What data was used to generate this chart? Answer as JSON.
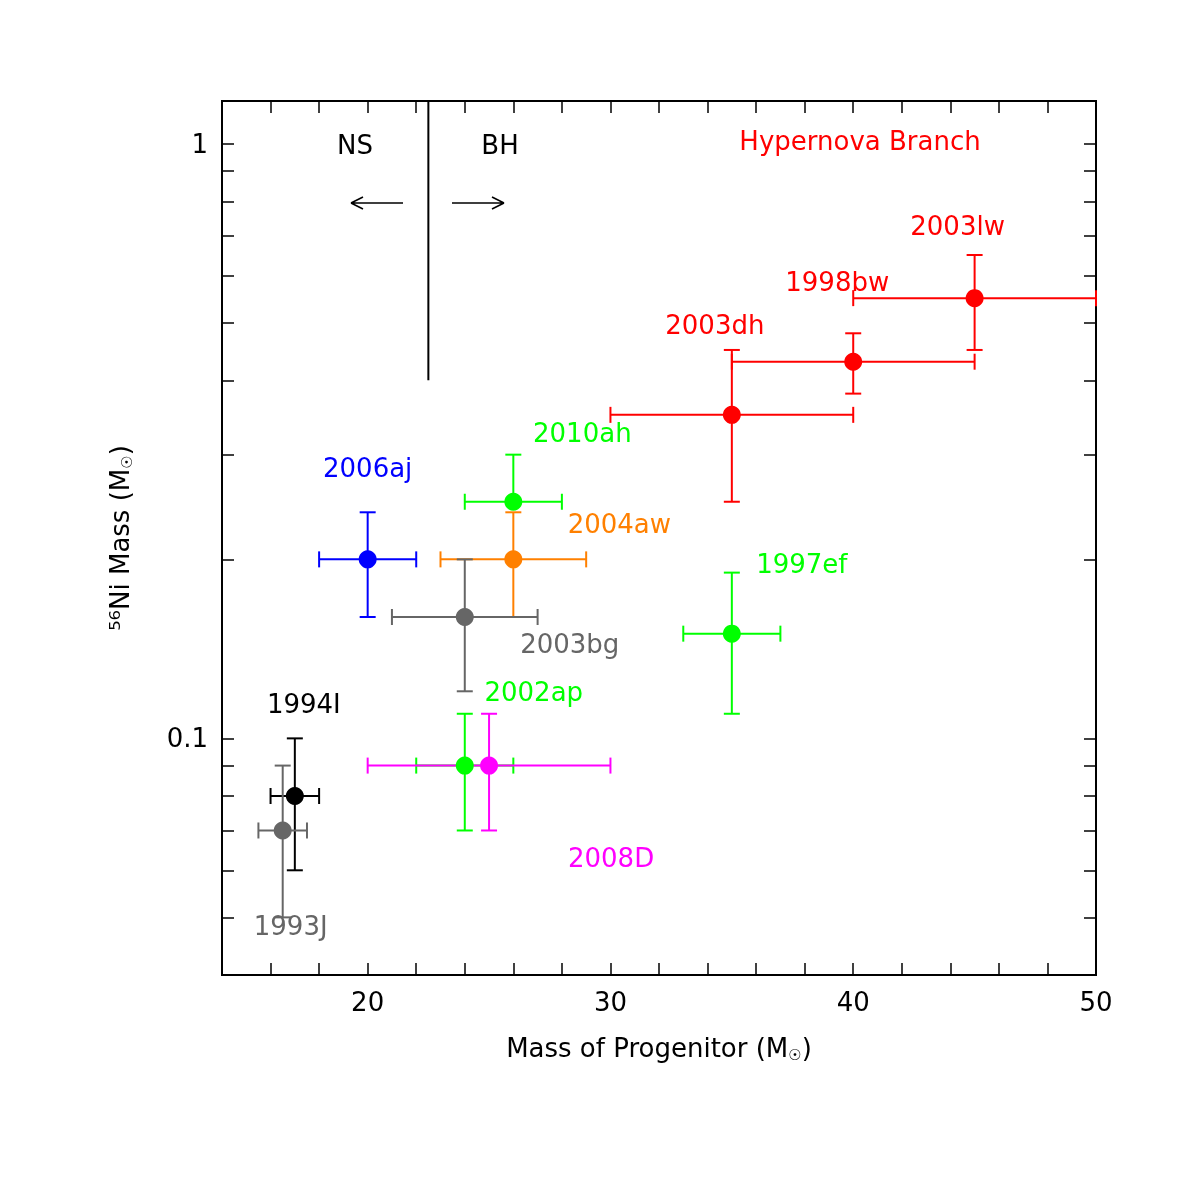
{
  "chart_data": {
    "type": "scatter",
    "xlabel": "Mass of Progenitor (M$_{☉}$)",
    "ylabel": "⁵⁶Ni Mass (M$_{☉}$)",
    "xlim": [
      14,
      50
    ],
    "xticks": [
      {
        "value": 16,
        "label": null
      },
      {
        "value": 18,
        "label": null
      },
      20,
      {
        "value": 22,
        "label": null
      },
      {
        "value": 24,
        "label": null
      },
      {
        "value": 26,
        "label": null
      },
      {
        "value": 28,
        "label": null
      },
      30,
      {
        "value": 32,
        "label": null
      },
      {
        "value": 34,
        "label": null
      },
      {
        "value": 36,
        "label": null
      },
      {
        "value": 38,
        "label": null
      },
      40,
      {
        "value": 42,
        "label": null
      },
      {
        "value": 44,
        "label": null
      },
      {
        "value": 46,
        "label": null
      },
      {
        "value": 48,
        "label": null
      },
      50
    ],
    "ylim": [
      0.04,
      1.18
    ],
    "yticks": [
      {
        "value": 0.05,
        "label": null
      },
      {
        "value": 0.06,
        "label": null
      },
      {
        "value": 0.07,
        "label": null
      },
      {
        "value": 0.08,
        "label": null
      },
      {
        "value": 0.09,
        "label": null
      },
      0.1,
      {
        "value": 0.2,
        "label": null
      },
      {
        "value": 0.3,
        "label": null
      },
      {
        "value": 0.4,
        "label": null
      },
      {
        "value": 0.5,
        "label": null
      },
      {
        "value": 0.6,
        "label": null
      },
      {
        "value": 0.7,
        "label": null
      },
      {
        "value": 0.8,
        "label": null
      },
      {
        "value": 0.9,
        "label": null
      },
      1
    ],
    "log": "y",
    "grid": false,
    "legend": false,
    "marker": "circle",
    "series": [
      {
        "name": "2003lw",
        "color": "#ff0000",
        "x": [
          45
        ],
        "values": [
          0.55
        ],
        "errors": [
          [
            0.45,
            0.65
          ]
        ],
        "xerrors": [
          [
            40,
            50
          ]
        ]
      },
      {
        "name": "1998bw",
        "color": "#ff0000",
        "x": [
          40
        ],
        "values": [
          0.43
        ],
        "errors": [
          [
            0.38,
            0.48
          ]
        ],
        "xerrors": [
          [
            35,
            45
          ]
        ]
      },
      {
        "name": "2003dh",
        "color": "#ff0000",
        "x": [
          35
        ],
        "values": [
          0.35
        ],
        "errors": [
          [
            0.25,
            0.45
          ]
        ],
        "xerrors": [
          [
            30,
            40
          ]
        ]
      },
      {
        "name": "2010ah",
        "color": "#00ff00",
        "x": [
          26
        ],
        "values": [
          0.25
        ],
        "errors": [
          [
            0.25,
            0.3
          ]
        ],
        "xerrors": [
          [
            24,
            28
          ]
        ]
      },
      {
        "name": "2004aw",
        "color": "#ff8000",
        "x": [
          26
        ],
        "values": [
          0.2
        ],
        "errors": [
          [
            0.16,
            0.24
          ]
        ],
        "xerrors": [
          [
            23,
            29
          ]
        ]
      },
      {
        "name": "2006aj",
        "color": "#0000ff",
        "x": [
          20
        ],
        "values": [
          0.2
        ],
        "errors": [
          [
            0.16,
            0.24
          ]
        ],
        "xerrors": [
          [
            18,
            22
          ]
        ]
      },
      {
        "name": "2003bg",
        "color": "#666666",
        "x": [
          24
        ],
        "values": [
          0.16
        ],
        "errors": [
          [
            0.12,
            0.2
          ]
        ],
        "xerrors": [
          [
            21,
            27
          ]
        ]
      },
      {
        "name": "1997ef",
        "color": "#00ff00",
        "x": [
          35
        ],
        "values": [
          0.15
        ],
        "errors": [
          [
            0.11,
            0.19
          ]
        ],
        "xerrors": [
          [
            33,
            37
          ]
        ]
      },
      {
        "name": "2002ap",
        "color": "#00ff00",
        "x": [
          24
        ],
        "values": [
          0.09
        ],
        "errors": [
          [
            0.07,
            0.11
          ]
        ],
        "xerrors": [
          [
            22,
            26
          ]
        ]
      },
      {
        "name": "2008D",
        "color": "#ff00ff",
        "x": [
          25
        ],
        "values": [
          0.09
        ],
        "errors": [
          [
            0.07,
            0.11
          ]
        ],
        "xerrors": [
          [
            20,
            30
          ]
        ]
      },
      {
        "name": "1994I",
        "color": "#000000",
        "x": [
          17
        ],
        "values": [
          0.08
        ],
        "errors": [
          [
            0.06,
            0.1
          ]
        ],
        "xerrors": [
          [
            16,
            18
          ]
        ]
      },
      {
        "name": "1993J",
        "color": "#666666",
        "x": [
          16.5
        ],
        "values": [
          0.07
        ],
        "errors": [
          [
            0.05,
            0.09
          ]
        ],
        "xerrors": [
          [
            15.5,
            17.5
          ]
        ]
      },
      {
        "type": "line",
        "color": "#000000",
        "marker": "none",
        "x": [
          22.5,
          22.5
        ],
        "values": [
          1.18,
          0.4
        ]
      }
    ],
    "annotations": [
      "NS",
      "BH",
      "Hypernova Branch"
    ]
  }
}
